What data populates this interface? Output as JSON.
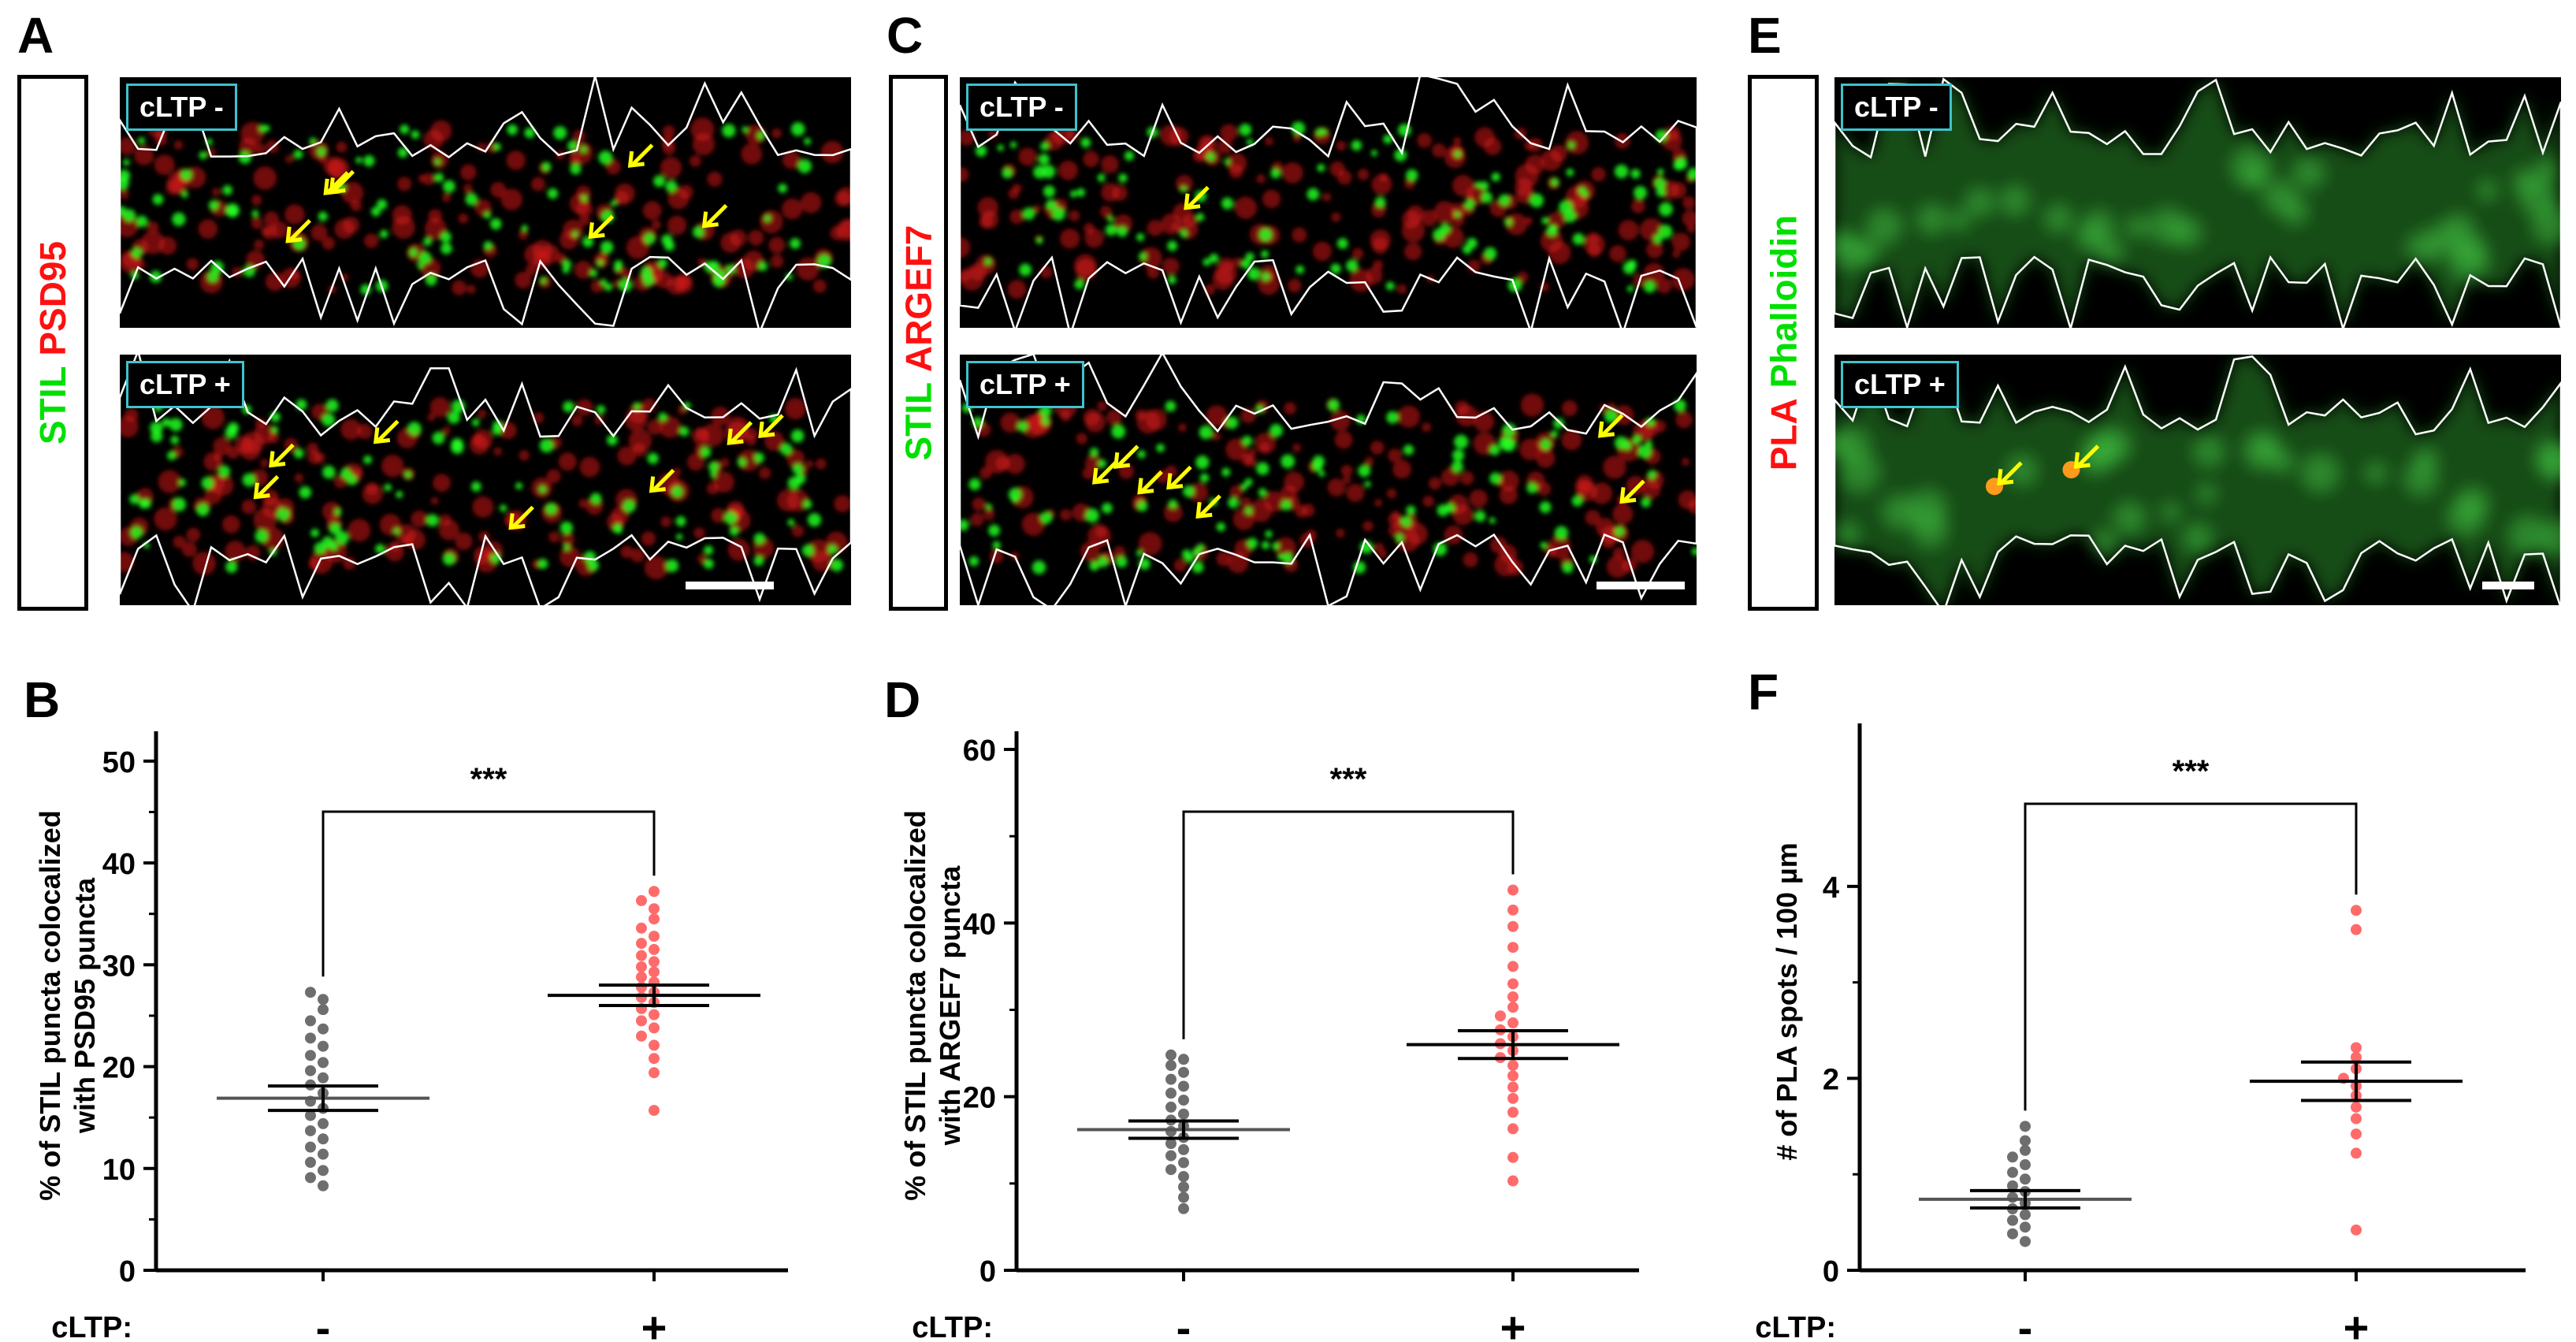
{
  "panels": [
    {
      "letter": "A",
      "ch1": "STIL",
      "ch2": "PSD95",
      "ch1_color": "#00e000",
      "ch2_color": "#ff1010",
      "top_label": "cLTP -",
      "bottom_label": "cLTP +"
    },
    {
      "letter": "C",
      "ch1": "STIL",
      "ch2": "ARGEF7",
      "ch1_color": "#00e000",
      "ch2_color": "#ff1010",
      "top_label": "cLTP -",
      "bottom_label": "cLTP +"
    },
    {
      "letter": "E",
      "ch1": "PLA",
      "ch2": "Phalloidin",
      "ch1_color": "#ff1010",
      "ch2_color": "#00e000",
      "top_label": "cLTP -",
      "bottom_label": "cLTP +"
    }
  ],
  "chart_letters": [
    "B",
    "D",
    "F"
  ],
  "colors": {
    "minus": "#6e6e6e",
    "plus": "#ff6b6b",
    "badge_border": "#3ec3cc",
    "arrow": "#ffff00"
  },
  "chart_data": [
    {
      "type": "scatter",
      "title": "",
      "ylabel": "% of STIL puncta colocalized with PSD95 puncta",
      "ylabel_lines": [
        "% of STIL puncta colocalized",
        "with PSD95 puncta"
      ],
      "ylim": [
        0,
        52
      ],
      "yticks": [
        0,
        10,
        20,
        30,
        40,
        50
      ],
      "yticklabels": [
        "0",
        "10",
        "20",
        "30",
        "40",
        "50"
      ],
      "x_prefix": "cLTP:",
      "categories": [
        "-",
        "+"
      ],
      "significance": "***",
      "series": [
        {
          "name": "cLTP -",
          "mean": 16.9,
          "sem_low": 15.7,
          "sem_high": 18.1,
          "values": [
            8.3,
            9.1,
            9.8,
            10.6,
            11.4,
            12.1,
            12.9,
            13.7,
            14.4,
            15.2,
            15.9,
            16.6,
            17.4,
            18.2,
            18.9,
            19.6,
            20.4,
            21.1,
            22.0,
            22.8,
            23.7,
            24.5,
            25.6,
            26.6,
            27.3
          ]
        },
        {
          "name": "cLTP +",
          "mean": 27.0,
          "sem_low": 26.0,
          "sem_high": 28.0,
          "values": [
            15.7,
            19.4,
            20.8,
            22.1,
            23.0,
            23.8,
            24.5,
            25.1,
            25.7,
            26.3,
            26.8,
            27.3,
            27.8,
            28.3,
            28.8,
            29.3,
            29.8,
            30.3,
            30.9,
            31.5,
            32.1,
            32.8,
            33.6,
            34.5,
            35.5,
            36.3,
            37.2
          ]
        }
      ]
    },
    {
      "type": "scatter",
      "title": "",
      "ylabel": "% of STIL puncta colocalized with ARGEF7 puncta",
      "ylabel_lines": [
        "% of STIL puncta colocalized",
        "with ARGEF7 puncta"
      ],
      "ylim": [
        0,
        61
      ],
      "yticks": [
        0,
        20,
        40,
        60
      ],
      "yticklabels": [
        "0",
        "20",
        "40",
        "60"
      ],
      "x_prefix": "cLTP:",
      "categories": [
        "-",
        "+"
      ],
      "significance": "***",
      "series": [
        {
          "name": "cLTP -",
          "mean": 16.2,
          "sem_low": 15.2,
          "sem_high": 17.2,
          "values": [
            7.1,
            8.4,
            9.6,
            10.8,
            11.6,
            12.4,
            13.2,
            13.9,
            14.6,
            15.3,
            16.0,
            16.6,
            17.3,
            18.0,
            18.8,
            19.6,
            20.4,
            21.2,
            22.0,
            22.8,
            23.6,
            24.3,
            24.8
          ]
        },
        {
          "name": "cLTP +",
          "mean": 26.0,
          "sem_low": 24.4,
          "sem_high": 27.6,
          "values": [
            10.3,
            13.0,
            16.3,
            18.2,
            19.8,
            21.1,
            22.4,
            23.6,
            24.5,
            25.3,
            26.1,
            26.9,
            27.7,
            28.5,
            29.3,
            30.3,
            31.5,
            33.0,
            35.0,
            37.2,
            39.6,
            41.5,
            43.8
          ]
        }
      ]
    },
    {
      "type": "scatter",
      "title": "",
      "ylabel": "# of PLA spots / 100 µm",
      "ylabel_lines": [
        "# of PLA spots / 100 µm"
      ],
      "ylim": [
        0,
        5.6
      ],
      "yticks": [
        0,
        2,
        4
      ],
      "yticklabels": [
        "0",
        "2",
        "4"
      ],
      "x_prefix": "cLTP:",
      "categories": [
        "-",
        "+"
      ],
      "significance": "***",
      "series": [
        {
          "name": "cLTP -",
          "mean": 0.74,
          "sem_low": 0.65,
          "sem_high": 0.83,
          "values": [
            0.3,
            0.38,
            0.45,
            0.52,
            0.58,
            0.64,
            0.7,
            0.76,
            0.82,
            0.88,
            0.95,
            1.02,
            1.1,
            1.18,
            1.25,
            1.35,
            1.5
          ]
        },
        {
          "name": "cLTP +",
          "mean": 1.97,
          "sem_low": 1.77,
          "sem_high": 2.17,
          "values": [
            0.42,
            1.22,
            1.42,
            1.58,
            1.7,
            1.82,
            1.92,
            2.0,
            2.1,
            2.22,
            2.32,
            3.55,
            3.75
          ]
        }
      ]
    }
  ]
}
